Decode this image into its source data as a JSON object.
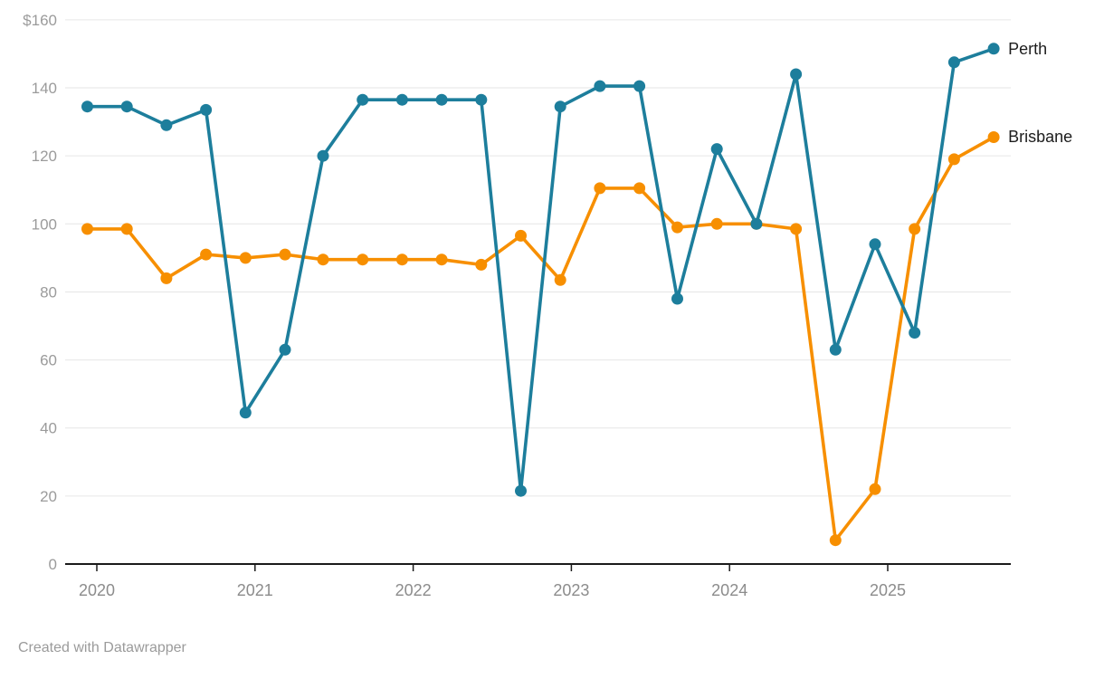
{
  "footer": {
    "credit": "Created with Datawrapper"
  },
  "colors": {
    "perth": "#1d7e9c",
    "brisbane": "#f78f00",
    "gridline": "#e6e6e6",
    "axis_line": "#1a1a1a",
    "y_label": "#9b9b9b",
    "x_label": "#8c8c8c",
    "legend_text": "#1d1d1d",
    "background": "#ffffff"
  },
  "chart_data": {
    "type": "line",
    "title": "",
    "xlabel": "",
    "ylabel": "",
    "grid": true,
    "legend_position": "end-of-line",
    "unit_prefix": "$",
    "ylim": [
      0,
      160
    ],
    "xlim": [
      2019.8,
      2025.78
    ],
    "y_ticks": [
      {
        "value": 160,
        "label": "$160"
      },
      {
        "value": 140,
        "label": "140"
      },
      {
        "value": 120,
        "label": "120"
      },
      {
        "value": 100,
        "label": "100"
      },
      {
        "value": 80,
        "label": "80"
      },
      {
        "value": 60,
        "label": "60"
      },
      {
        "value": 40,
        "label": "40"
      },
      {
        "value": 20,
        "label": "20"
      },
      {
        "value": 0,
        "label": "0"
      }
    ],
    "x_ticks": [
      {
        "value": 2020,
        "label": "2020"
      },
      {
        "value": 2021,
        "label": "2021"
      },
      {
        "value": 2022,
        "label": "2022"
      },
      {
        "value": 2023,
        "label": "2023"
      },
      {
        "value": 2024,
        "label": "2024"
      },
      {
        "value": 2025,
        "label": "2025"
      }
    ],
    "x_note": "quarterly points, Dec-2019 through Sep-2025, expressed as decimal years",
    "x": [
      2019.94,
      2020.19,
      2020.44,
      2020.69,
      2020.94,
      2021.19,
      2021.43,
      2021.68,
      2021.93,
      2022.18,
      2022.43,
      2022.68,
      2022.93,
      2023.18,
      2023.43,
      2023.67,
      2023.92,
      2024.17,
      2024.42,
      2024.67,
      2024.92,
      2025.17,
      2025.42,
      2025.67
    ],
    "series": [
      {
        "name": "Brisbane",
        "color": "#f78f00",
        "values": [
          98.5,
          98.5,
          84,
          91,
          90,
          91,
          89.5,
          89.5,
          89.5,
          89.5,
          88,
          96.5,
          83.5,
          110.5,
          110.5,
          99,
          100,
          100,
          98.5,
          7,
          22,
          98.5,
          119,
          125.5
        ]
      },
      {
        "name": "Perth",
        "color": "#1d7e9c",
        "values": [
          134.5,
          134.5,
          129,
          133.5,
          44.5,
          63,
          120,
          136.5,
          136.5,
          136.5,
          136.5,
          21.5,
          134.5,
          140.5,
          140.5,
          78,
          122,
          100,
          144,
          63,
          94,
          68,
          147.5,
          151.5
        ]
      }
    ]
  }
}
